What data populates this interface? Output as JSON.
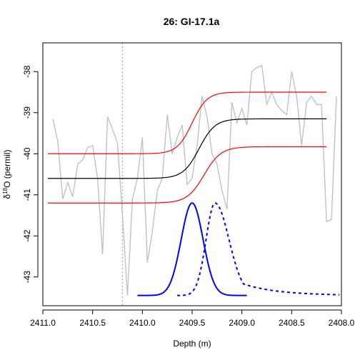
{
  "chart_data": {
    "type": "line",
    "title": "26: GI-17.1a",
    "xlabel": "Depth (m)",
    "ylabel": {
      "prefix": "δ",
      "superscript": "18",
      "suffix": "O (permil)"
    },
    "xlim": [
      2411.0,
      2408.0
    ],
    "ylim": [
      -43.7,
      -37.3
    ],
    "x_ticks": [
      2411.0,
      2410.5,
      2410.0,
      2409.5,
      2409.0,
      2408.5,
      2408.0
    ],
    "x_tick_labels": [
      "2411.0",
      "2410.5",
      "2410.0",
      "2409.5",
      "2409.0",
      "2408.5",
      "2408.0"
    ],
    "y_ticks": [
      -43,
      -42,
      -41,
      -40,
      -39,
      -38
    ],
    "y_tick_labels": [
      "-43",
      "-42",
      "-41",
      "-40",
      "-39",
      "-38"
    ],
    "vertical_line": {
      "x": 2410.2,
      "style": "dotted",
      "color": "#aaaaaa"
    },
    "series": [
      {
        "role": "observed",
        "color": "#bebebe",
        "x": [
          2410.9,
          2410.85,
          2410.8,
          2410.75,
          2410.7,
          2410.65,
          2410.6,
          2410.55,
          2410.5,
          2410.45,
          2410.4,
          2410.35,
          2410.3,
          2410.25,
          2410.2,
          2410.15,
          2410.1,
          2410.05,
          2410.0,
          2409.95,
          2409.9,
          2409.85,
          2409.8,
          2409.75,
          2409.7,
          2409.65,
          2409.6,
          2409.55,
          2409.5,
          2409.45,
          2409.4,
          2409.35,
          2409.3,
          2409.25,
          2409.2,
          2409.15,
          2409.1,
          2409.05,
          2409.0,
          2408.95,
          2408.9,
          2408.85,
          2408.8,
          2408.75,
          2408.7,
          2408.65,
          2408.6,
          2408.55,
          2408.5,
          2408.45,
          2408.4,
          2408.35,
          2408.3,
          2408.25,
          2408.2,
          2408.15,
          2408.1,
          2408.05
        ],
        "y": [
          -39.15,
          -39.7,
          -41.1,
          -40.7,
          -41.05,
          -40.25,
          -40.15,
          -39.85,
          -39.8,
          -40.6,
          -42.45,
          -39.1,
          -39.4,
          -39.75,
          -41.5,
          -43.45,
          -41.1,
          -40.6,
          -39.6,
          -42.65,
          -41.9,
          -40.9,
          -40.6,
          -39.05,
          -40.0,
          -39.6,
          -39.3,
          -40.75,
          -40.6,
          -39.8,
          -38.6,
          -39.1,
          -40.0,
          -40.25,
          -40.9,
          -41.35,
          -38.75,
          -39.25,
          -38.9,
          -39.3,
          -38.0,
          -37.9,
          -37.85,
          -38.8,
          -38.5,
          -38.8,
          -38.95,
          -39.05,
          -38.0,
          -38.6,
          -39.8,
          -38.75,
          -38.6,
          -38.8,
          -38.8,
          -41.65,
          -41.6,
          -38.6
        ]
      },
      {
        "role": "fit",
        "color": "#000000",
        "model": {
          "lower": -40.6,
          "upper": -39.15,
          "midpoint": 2409.43,
          "width": 0.08,
          "x_start": 2410.95,
          "x_end": 2408.15
        }
      },
      {
        "role": "fit-upper",
        "color": "#ff0000",
        "model": {
          "lower": -40.0,
          "upper": -38.5,
          "midpoint": 2409.5,
          "width": 0.075,
          "x_start": 2410.95,
          "x_end": 2408.15
        }
      },
      {
        "role": "fit-lower",
        "color": "#ff0000",
        "model": {
          "lower": -41.2,
          "upper": -39.83,
          "midpoint": 2409.38,
          "width": 0.085,
          "x_start": 2410.95,
          "x_end": 2408.15
        }
      },
      {
        "role": "density-solid",
        "color": "#0000ff",
        "dash": "solid",
        "density": {
          "baseline": -43.45,
          "peak": -41.2,
          "center": 2409.5,
          "sigma": 0.11,
          "x_start": 2410.05,
          "x_end": 2408.95
        }
      },
      {
        "role": "density-dashed",
        "color": "#0000ff",
        "dash": "dashed",
        "density": {
          "baseline": -43.45,
          "peak": -41.2,
          "center": 2409.27,
          "sigma_left": 0.09,
          "sigma_right": 0.14,
          "tail": 0.28,
          "x_start": 2409.65,
          "x_end": 2408.02
        }
      }
    ]
  }
}
